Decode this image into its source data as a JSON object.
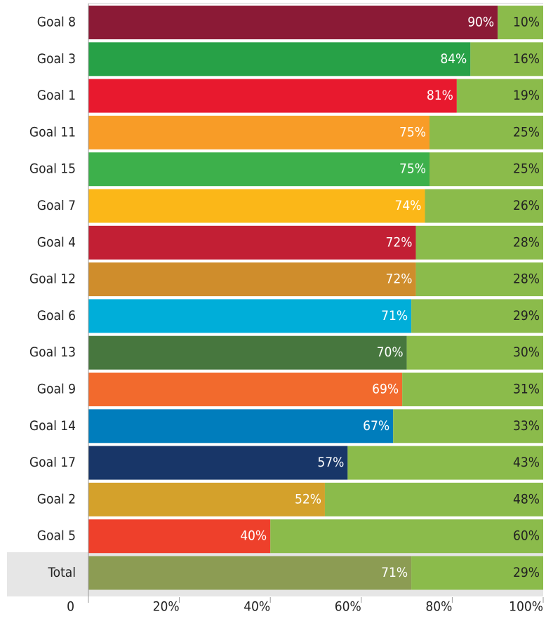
{
  "chart_data": {
    "type": "stacked-bar-horizontal",
    "categories": [
      "Goal 8",
      "Goal 3",
      "Goal 1",
      "Goal 11",
      "Goal 15",
      "Goal 7",
      "Goal 4",
      "Goal 12",
      "Goal 6",
      "Goal 13",
      "Goal 9",
      "Goal 14",
      "Goal 17",
      "Goal 2",
      "Goal 5",
      "Total"
    ],
    "series": [
      {
        "colors": [
          "#8b1a36",
          "#27a147",
          "#e8192e",
          "#f89c27",
          "#3db04b",
          "#fbb718",
          "#c21f34",
          "#cf8d2c",
          "#00aed9",
          "#47773e",
          "#f26a2d",
          "#007dbc",
          "#183668",
          "#d4a12b",
          "#ee402b",
          "#8c9c53"
        ],
        "values": [
          90,
          84,
          81,
          75,
          75,
          74,
          72,
          72,
          71,
          70,
          69,
          67,
          57,
          52,
          40,
          71
        ],
        "value_labels": [
          "90%",
          "84%",
          "81%",
          "75%",
          "75%",
          "74%",
          "72%",
          "72%",
          "71%",
          "70%",
          "69%",
          "67%",
          "57%",
          "52%",
          "40%",
          "71%"
        ]
      },
      {
        "color": "#8bbb4b",
        "values": [
          10,
          16,
          19,
          25,
          25,
          26,
          28,
          28,
          29,
          30,
          31,
          33,
          43,
          48,
          60,
          29
        ],
        "value_labels": [
          "10%",
          "16%",
          "19%",
          "25%",
          "25%",
          "26%",
          "28%",
          "28%",
          "29%",
          "30%",
          "31%",
          "33%",
          "43%",
          "48%",
          "60%",
          "29%"
        ]
      }
    ],
    "xlim": [
      0,
      100
    ],
    "xticks": [
      0,
      {
        "value": 20,
        "label": "20%"
      },
      {
        "value": 40,
        "label": "40%"
      },
      {
        "value": 60,
        "label": "60%"
      },
      {
        "value": 80,
        "label": "80%"
      },
      {
        "value": 100,
        "label": "100%"
      }
    ]
  }
}
